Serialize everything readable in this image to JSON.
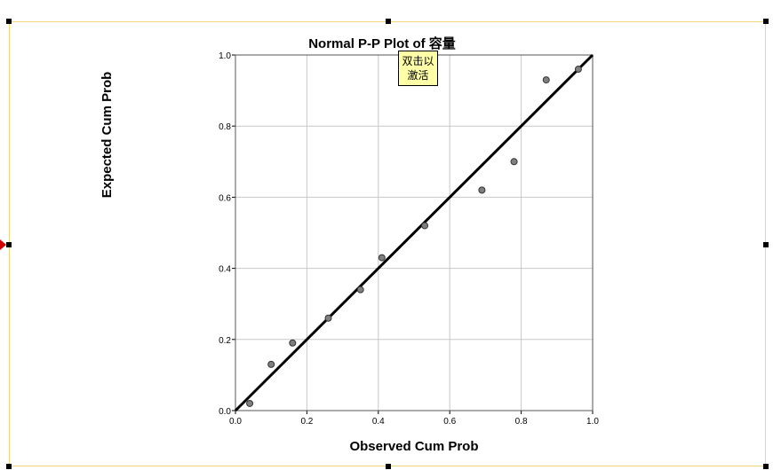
{
  "chart_data": {
    "type": "scatter",
    "title": "Normal P-P Plot of 容量",
    "xlabel": "Observed Cum Prob",
    "ylabel": "Expected Cum Prob",
    "xlim": [
      0.0,
      1.0
    ],
    "ylim": [
      0.0,
      1.0
    ],
    "x_ticks": [
      "0.0",
      "0.2",
      "0.4",
      "0.6",
      "0.8",
      "1.0"
    ],
    "y_ticks": [
      "0.0",
      "0.2",
      "0.4",
      "0.6",
      "0.8",
      "1.0"
    ],
    "grid": true,
    "points": [
      {
        "x": 0.04,
        "y": 0.02
      },
      {
        "x": 0.1,
        "y": 0.13
      },
      {
        "x": 0.16,
        "y": 0.19
      },
      {
        "x": 0.26,
        "y": 0.26
      },
      {
        "x": 0.35,
        "y": 0.34
      },
      {
        "x": 0.41,
        "y": 0.43
      },
      {
        "x": 0.53,
        "y": 0.52
      },
      {
        "x": 0.69,
        "y": 0.62
      },
      {
        "x": 0.78,
        "y": 0.7
      },
      {
        "x": 0.87,
        "y": 0.93
      },
      {
        "x": 0.96,
        "y": 0.96
      }
    ],
    "reference_line": {
      "from": [
        0,
        0
      ],
      "to": [
        1,
        1
      ]
    },
    "point_color": "#7f7f7f",
    "line_color": "#000000"
  },
  "tooltip": {
    "line1": "双击以",
    "line2": "激活"
  },
  "colors": {
    "frame": "#f1d77a",
    "grid": "#c8c8c8",
    "marker_arrow": "#d40000"
  }
}
